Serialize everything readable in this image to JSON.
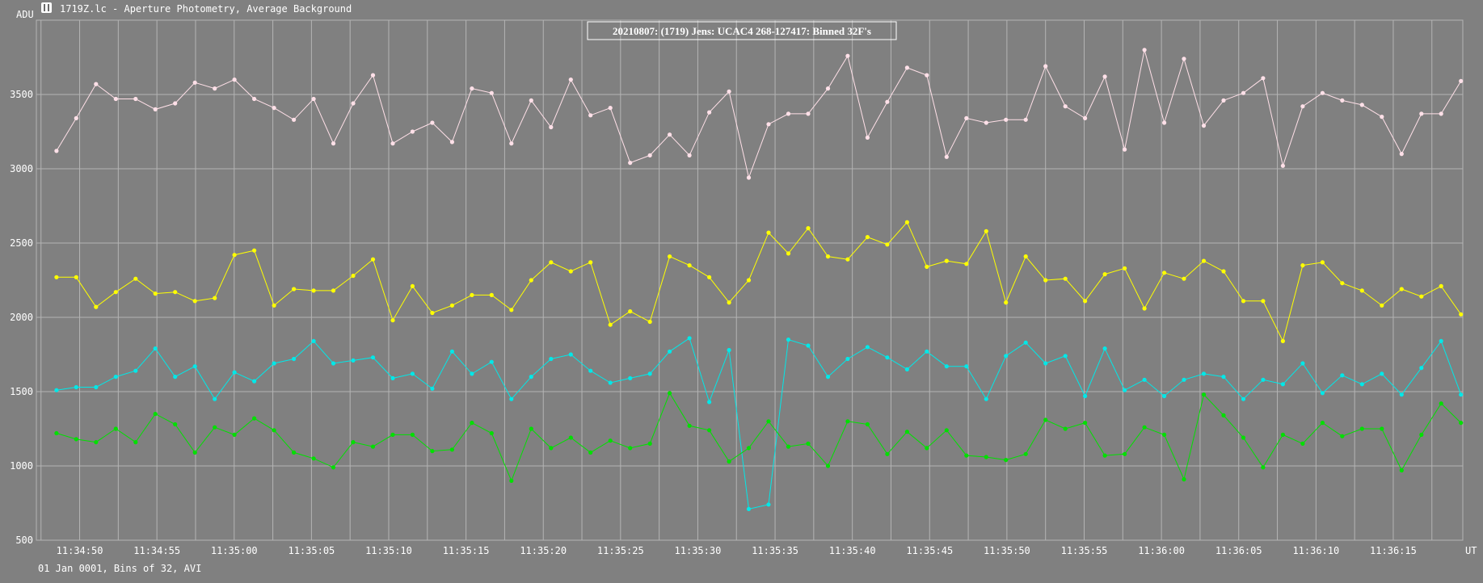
{
  "window": {
    "title": "1719Z.lc - Aperture Photometry, Average Background",
    "icon": "lightcurve-app-icon"
  },
  "footer": {
    "text": "01 Jan 0001, Bins of 32, AVI"
  },
  "chart_data": {
    "type": "line",
    "title": "20210807: (1719) Jens: UCAC4 268-127417: Binned 32F's",
    "ylabel": "ADU",
    "xlabel": "UT",
    "ylim": [
      500,
      4000
    ],
    "yticks": [
      500,
      1000,
      1500,
      2000,
      2500,
      3000,
      3500
    ],
    "xlim_seconds_after_11_34_00": [
      47.2,
      139.5
    ],
    "xticks": [
      "11:34:50",
      "11:34:55",
      "11:35:00",
      "11:35:05",
      "11:35:10",
      "11:35:15",
      "11:35:20",
      "11:35:25",
      "11:35:30",
      "11:35:35",
      "11:35:40",
      "11:35:45",
      "11:35:50",
      "11:35:55",
      "11:36:00",
      "11:36:05",
      "11:36:10",
      "11:36:15"
    ],
    "xtick_values_seconds_after_11_34_00": [
      50,
      55,
      60,
      65,
      70,
      75,
      80,
      85,
      90,
      95,
      100,
      105,
      110,
      115,
      120,
      125,
      130,
      135
    ],
    "x_start_seconds_after_11_34_00": 48.5,
    "x_step_seconds": 1.28,
    "grid": true,
    "background": "#808080",
    "grid_color": "#b4b4b4",
    "series": [
      {
        "color": "#ffe0e8",
        "values": [
          3120,
          3340,
          3570,
          3470,
          3470,
          3400,
          3440,
          3580,
          3540,
          3600,
          3470,
          3410,
          3330,
          3470,
          3170,
          3440,
          3630,
          3170,
          3250,
          3310,
          3180,
          3540,
          3510,
          3170,
          3460,
          3280,
          3600,
          3360,
          3410,
          3040,
          3090,
          3230,
          3090,
          3380,
          3520,
          2940,
          3300,
          3370,
          3370,
          3540,
          3760,
          3210,
          3450,
          3680,
          3630,
          3080,
          3340,
          3310,
          3330,
          3330,
          3690,
          3420,
          3340,
          3620,
          3130,
          3800,
          3310,
          3740,
          3290,
          3460,
          3510,
          3610,
          3020,
          3420,
          3510,
          3460,
          3430,
          3350,
          3100,
          3370,
          3370,
          3590
        ]
      },
      {
        "color": "#ffff00",
        "values": [
          2270,
          2270,
          2070,
          2170,
          2260,
          2160,
          2170,
          2110,
          2130,
          2420,
          2450,
          2080,
          2190,
          2180,
          2180,
          2280,
          2390,
          1980,
          2210,
          2030,
          2080,
          2150,
          2150,
          2050,
          2250,
          2370,
          2310,
          2370,
          1950,
          2040,
          1970,
          2410,
          2350,
          2270,
          2100,
          2250,
          2570,
          2430,
          2600,
          2410,
          2390,
          2540,
          2490,
          2640,
          2340,
          2380,
          2360,
          2580,
          2100,
          2410,
          2250,
          2260,
          2110,
          2290,
          2330,
          2060,
          2300,
          2260,
          2380,
          2310,
          2110,
          2110,
          1840,
          2350,
          2370,
          2230,
          2180,
          2080,
          2190,
          2140,
          2210,
          2020
        ]
      },
      {
        "color": "#00e8e8",
        "values": [
          1510,
          1530,
          1530,
          1600,
          1640,
          1790,
          1600,
          1670,
          1450,
          1630,
          1570,
          1690,
          1720,
          1840,
          1690,
          1710,
          1730,
          1590,
          1620,
          1520,
          1770,
          1620,
          1700,
          1450,
          1600,
          1720,
          1750,
          1640,
          1560,
          1590,
          1620,
          1770,
          1860,
          1430,
          1780,
          710,
          740,
          1850,
          1810,
          1600,
          1720,
          1800,
          1730,
          1650,
          1770,
          1670,
          1670,
          1450,
          1740,
          1830,
          1690,
          1740,
          1470,
          1790,
          1510,
          1580,
          1470,
          1580,
          1620,
          1600,
          1450,
          1580,
          1550,
          1690,
          1490,
          1610,
          1550,
          1620,
          1480,
          1660,
          1840,
          1480
        ]
      },
      {
        "color": "#00e000",
        "values": [
          1220,
          1180,
          1160,
          1250,
          1160,
          1350,
          1280,
          1090,
          1260,
          1210,
          1320,
          1240,
          1090,
          1050,
          990,
          1160,
          1130,
          1210,
          1210,
          1100,
          1110,
          1290,
          1220,
          900,
          1250,
          1120,
          1190,
          1090,
          1170,
          1120,
          1150,
          1490,
          1270,
          1240,
          1030,
          1120,
          1300,
          1130,
          1150,
          1000,
          1300,
          1280,
          1080,
          1230,
          1120,
          1240,
          1070,
          1060,
          1040,
          1080,
          1310,
          1250,
          1290,
          1070,
          1080,
          1260,
          1210,
          910,
          1480,
          1340,
          1190,
          990,
          1210,
          1150,
          1290,
          1200,
          1250,
          1250,
          970,
          1210,
          1420,
          1290
        ]
      }
    ]
  }
}
